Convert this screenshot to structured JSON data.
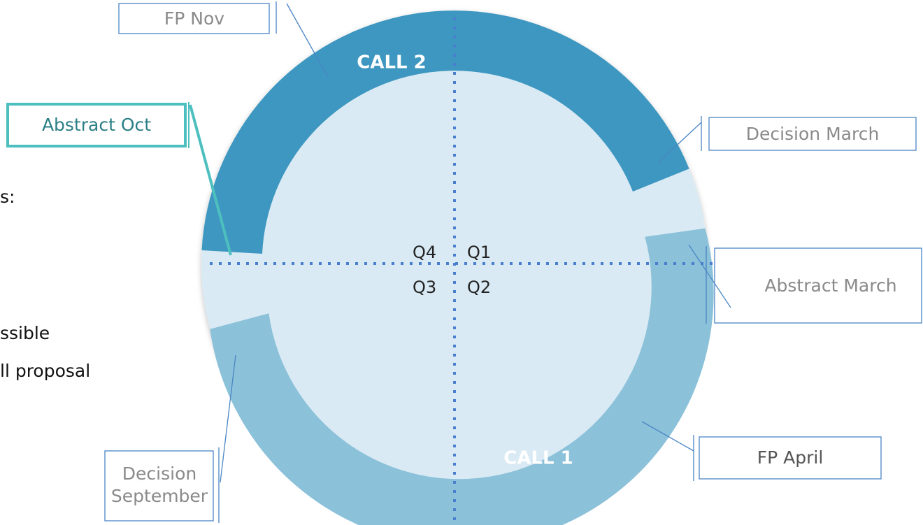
{
  "calls": [
    {
      "label": "CALL 2"
    },
    {
      "label": "CALL 1"
    }
  ],
  "quarters": [
    "Q4",
    "Q1",
    "Q3",
    "Q2"
  ],
  "callouts": [
    {
      "label": "FP Nov"
    },
    {
      "label": "Abstract Oct"
    },
    {
      "label": "Decision March"
    },
    {
      "label": "Abstract March"
    },
    {
      "label": "FP April"
    },
    {
      "label": "Decision September"
    }
  ],
  "side_text": [
    "s:",
    "ssible",
    "ll proposal"
  ]
}
